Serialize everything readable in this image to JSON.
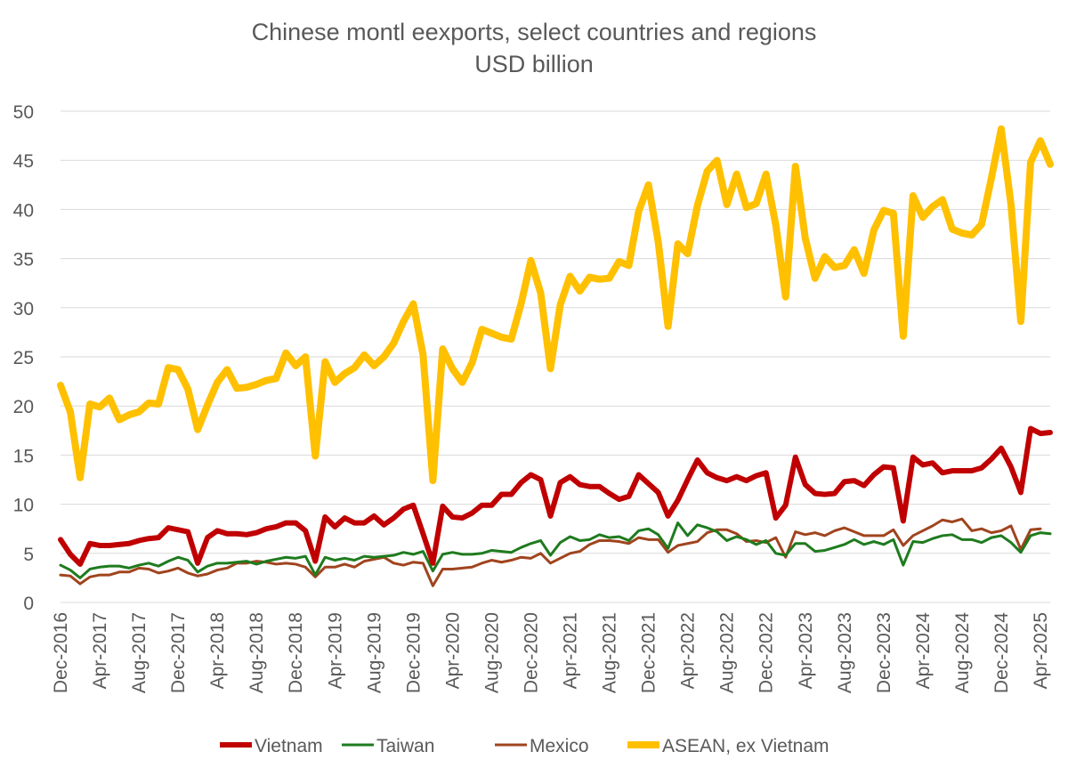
{
  "chart_data": {
    "type": "line",
    "title": "Chinese montl eexports, select countries and regions",
    "subtitle": "USD billion",
    "xlabel": "",
    "ylabel": "",
    "ylim": [
      0,
      50
    ],
    "yticks": [
      0,
      5,
      10,
      15,
      20,
      25,
      30,
      35,
      40,
      45,
      50
    ],
    "grid": "horizontal",
    "legend_position": "bottom",
    "x_start": "Dec-2016",
    "x_ticks": [
      "Dec-2016",
      "Apr-2017",
      "Aug-2017",
      "Dec-2017",
      "Apr-2018",
      "Aug-2018",
      "Dec-2018",
      "Apr-2019",
      "Aug-2019",
      "Dec-2019",
      "Apr-2020",
      "Aug-2020",
      "Dec-2020",
      "Apr-2021",
      "Aug-2021",
      "Dec-2021",
      "Apr-2022",
      "Aug-2022",
      "Dec-2022",
      "Apr-2023",
      "Aug-2023",
      "Dec-2023",
      "Apr-2024",
      "Aug-2024",
      "Dec-2024",
      "Apr-2025"
    ],
    "series": [
      {
        "name": "Vietnam",
        "color": "#C00000",
        "values": [
          6.4,
          4.9,
          3.9,
          6.0,
          5.8,
          5.8,
          5.9,
          6.0,
          6.3,
          6.5,
          6.6,
          7.6,
          7.4,
          7.2,
          4.0,
          6.6,
          7.3,
          7.0,
          7.0,
          6.9,
          7.1,
          7.5,
          7.7,
          8.1,
          8.1,
          7.3,
          4.2,
          8.7,
          7.7,
          8.6,
          8.1,
          8.1,
          8.8,
          7.9,
          8.6,
          9.5,
          9.9,
          7.0,
          4.0,
          9.8,
          8.7,
          8.6,
          9.1,
          9.9,
          9.9,
          11.0,
          11.0,
          12.2,
          13.0,
          12.5,
          8.8,
          12.2,
          12.8,
          12.0,
          11.8,
          11.8,
          11.1,
          10.5,
          10.8,
          13.0,
          12.1,
          11.2,
          8.8,
          10.4,
          12.5,
          14.5,
          13.2,
          12.7,
          12.4,
          12.8,
          12.4,
          12.9,
          13.2,
          8.6,
          9.9,
          14.8,
          12.0,
          11.1,
          11.0,
          11.1,
          12.3,
          12.4,
          11.9,
          13.0,
          13.8,
          13.7,
          8.3,
          14.8,
          14.0,
          14.2,
          13.2,
          13.4,
          13.4,
          13.4,
          13.7,
          14.6,
          15.7,
          13.8,
          11.2,
          17.7,
          17.2,
          17.3
        ]
      },
      {
        "name": "Taiwan",
        "color": "#1E7B1E",
        "values": [
          3.8,
          3.3,
          2.5,
          3.4,
          3.6,
          3.7,
          3.7,
          3.5,
          3.8,
          4.0,
          3.7,
          4.2,
          4.6,
          4.3,
          3.1,
          3.7,
          4.0,
          4.0,
          4.1,
          4.2,
          3.9,
          4.2,
          4.4,
          4.6,
          4.5,
          4.7,
          2.8,
          4.6,
          4.3,
          4.5,
          4.3,
          4.7,
          4.6,
          4.7,
          4.8,
          5.1,
          4.9,
          5.2,
          3.2,
          4.9,
          5.1,
          4.9,
          4.9,
          5.0,
          5.3,
          5.2,
          5.1,
          5.6,
          6.0,
          6.3,
          4.8,
          6.1,
          6.7,
          6.3,
          6.4,
          6.9,
          6.6,
          6.7,
          6.3,
          7.3,
          7.5,
          6.9,
          5.5,
          8.1,
          6.8,
          7.9,
          7.6,
          7.2,
          6.3,
          6.7,
          6.4,
          5.9,
          6.3,
          5.0,
          4.8,
          6.0,
          6.0,
          5.2,
          5.3,
          5.6,
          5.9,
          6.4,
          5.9,
          6.2,
          5.9,
          6.4,
          3.8,
          6.2,
          6.1,
          6.5,
          6.8,
          6.9,
          6.4,
          6.4,
          6.1,
          6.6,
          6.8,
          6.1,
          5.1,
          6.8,
          7.1,
          7.0
        ]
      },
      {
        "name": "Mexico",
        "color": "#A0441E",
        "values": [
          2.8,
          2.7,
          1.9,
          2.6,
          2.8,
          2.8,
          3.1,
          3.1,
          3.5,
          3.4,
          3.0,
          3.2,
          3.5,
          3.0,
          2.7,
          2.9,
          3.3,
          3.5,
          4.0,
          4.0,
          4.2,
          4.1,
          3.9,
          4.0,
          3.9,
          3.6,
          2.6,
          3.6,
          3.6,
          3.9,
          3.6,
          4.2,
          4.4,
          4.6,
          4.0,
          3.8,
          4.1,
          4.0,
          1.7,
          3.4,
          3.4,
          3.5,
          3.6,
          4.0,
          4.3,
          4.1,
          4.3,
          4.6,
          4.5,
          5.0,
          4.0,
          4.5,
          5.0,
          5.2,
          5.9,
          6.3,
          6.3,
          6.2,
          6.0,
          6.6,
          6.4,
          6.4,
          5.1,
          5.8,
          6.0,
          6.2,
          7.1,
          7.4,
          7.4,
          7.0,
          6.2,
          6.3,
          6.1,
          6.6,
          4.6,
          7.2,
          6.9,
          7.1,
          6.8,
          7.3,
          7.6,
          7.2,
          6.8,
          6.8,
          6.8,
          7.4,
          5.8,
          6.8,
          7.3,
          7.8,
          8.4,
          8.2,
          8.5,
          7.3,
          7.5,
          7.1,
          7.3,
          7.8,
          5.4,
          7.4,
          7.5
        ]
      },
      {
        "name": "ASEAN, ex Vietnam",
        "color": "#FFC000",
        "values": [
          22.1,
          19.4,
          12.7,
          20.2,
          19.9,
          20.8,
          18.6,
          19.1,
          19.4,
          20.3,
          20.2,
          23.9,
          23.7,
          21.7,
          17.6,
          20.1,
          22.4,
          23.7,
          21.8,
          21.9,
          22.2,
          22.6,
          22.8,
          25.4,
          24.1,
          25.0,
          14.9,
          24.5,
          22.4,
          23.3,
          23.9,
          25.2,
          24.1,
          25.0,
          26.4,
          28.6,
          30.4,
          25.2,
          12.4,
          25.8,
          23.8,
          22.4,
          24.4,
          27.8,
          27.4,
          27.0,
          26.8,
          30.4,
          34.8,
          31.5,
          23.8,
          30.3,
          33.2,
          31.7,
          33.1,
          32.9,
          33.0,
          34.7,
          34.3,
          39.8,
          42.5,
          36.7,
          28.1,
          36.5,
          35.5,
          40.4,
          43.9,
          45.0,
          40.5,
          43.6,
          40.2,
          40.6,
          43.6,
          38.4,
          31.1,
          44.4,
          37.1,
          33.0,
          35.2,
          34.1,
          34.3,
          35.9,
          33.5,
          37.9,
          39.9,
          39.6,
          27.1,
          41.4,
          39.2,
          40.3,
          41.0,
          38.0,
          37.6,
          37.4,
          38.5,
          43.2,
          48.2,
          40.5,
          28.6,
          44.8,
          47.0,
          44.6
        ]
      }
    ]
  }
}
